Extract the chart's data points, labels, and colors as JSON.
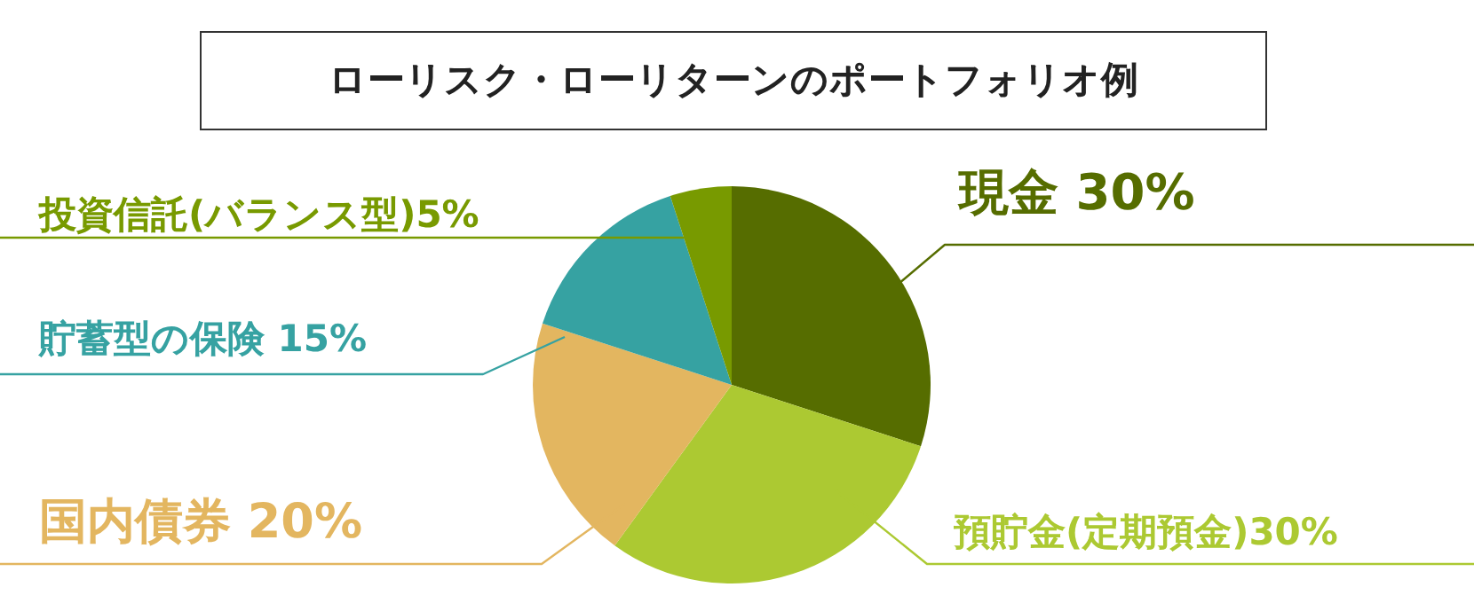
{
  "chart_data": {
    "type": "pie",
    "title": "ローリスク・ローリターンのポートフォリオ例",
    "categories": [
      "現金 30%",
      "預貯金(定期預金)30%",
      "国内債券  20%",
      "貯蓄型の保険 15%",
      "投資信託(バランス型)5%"
    ],
    "values": [
      30,
      30,
      20,
      15,
      5
    ],
    "colors": [
      "#566d00",
      "#acc932",
      "#e3b660",
      "#36a2a2",
      "#789a00"
    ]
  }
}
